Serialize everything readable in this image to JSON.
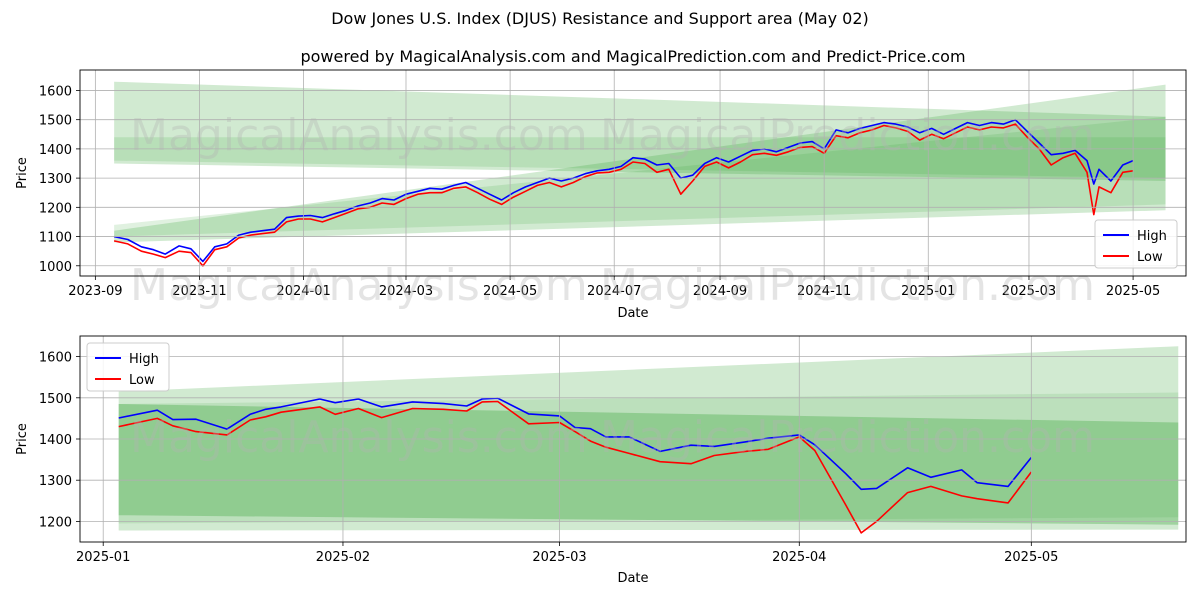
{
  "figure": {
    "title": "Dow Jones U.S. Index (DJUS) Resistance and Support area (May 02)",
    "watermarks": [
      "MagicalAnalysis.com",
      "MagicalPrediction.com"
    ]
  },
  "colors": {
    "high": "#0000ff",
    "low": "#ff0000",
    "band": "#2ca02c"
  },
  "chart_data": [
    {
      "type": "line",
      "subtitle": "powered by MagicalAnalysis.com and MagicalPrediction.com and Predict-Price.com",
      "xlabel": "Date",
      "ylabel": "Price",
      "xlim": [
        "2023-08-23",
        "2025-06-01"
      ],
      "ylim": [
        965,
        1670
      ],
      "grid": true,
      "legend": "lower-right",
      "xticks": [
        "2023-09",
        "2023-11",
        "2024-01",
        "2024-03",
        "2024-05",
        "2024-07",
        "2024-09",
        "2024-11",
        "2025-01",
        "2025-03",
        "2025-05"
      ],
      "yticks": [
        1000,
        1100,
        1200,
        1300,
        1400,
        1500,
        1600
      ],
      "bands": [
        {
          "x": [
            "2023-09-12",
            "2025-05-20"
          ],
          "upper": [
            1630,
            1510
          ],
          "lower": [
            1350,
            1290
          ],
          "alpha": 0.22
        },
        {
          "x": [
            "2023-09-12",
            "2025-05-20"
          ],
          "upper": [
            1440,
            1440
          ],
          "lower": [
            1360,
            1300
          ],
          "alpha": 0.15
        },
        {
          "x": [
            "2023-09-12",
            "2025-05-20"
          ],
          "upper": [
            1120,
            1620
          ],
          "lower": [
            1080,
            1190
          ],
          "alpha": 0.22
        },
        {
          "x": [
            "2023-09-12",
            "2025-05-20"
          ],
          "upper": [
            1140,
            1510
          ],
          "lower": [
            1100,
            1210
          ],
          "alpha": 0.15
        }
      ],
      "series": [
        {
          "name": "High",
          "x": [
            "2023-09-12",
            "2023-09-20",
            "2023-09-28",
            "2023-10-05",
            "2023-10-12",
            "2023-10-20",
            "2023-10-27",
            "2023-11-03",
            "2023-11-10",
            "2023-11-17",
            "2023-11-24",
            "2023-12-01",
            "2023-12-08",
            "2023-12-15",
            "2023-12-22",
            "2023-12-29",
            "2024-01-05",
            "2024-01-12",
            "2024-01-19",
            "2024-01-26",
            "2024-02-02",
            "2024-02-09",
            "2024-02-16",
            "2024-02-23",
            "2024-03-01",
            "2024-03-08",
            "2024-03-15",
            "2024-03-22",
            "2024-03-29",
            "2024-04-05",
            "2024-04-12",
            "2024-04-19",
            "2024-04-26",
            "2024-05-03",
            "2024-05-10",
            "2024-05-17",
            "2024-05-24",
            "2024-05-31",
            "2024-06-07",
            "2024-06-14",
            "2024-06-21",
            "2024-06-28",
            "2024-07-05",
            "2024-07-12",
            "2024-07-19",
            "2024-07-26",
            "2024-08-02",
            "2024-08-09",
            "2024-08-16",
            "2024-08-23",
            "2024-08-30",
            "2024-09-06",
            "2024-09-13",
            "2024-09-20",
            "2024-09-27",
            "2024-10-04",
            "2024-10-11",
            "2024-10-18",
            "2024-10-25",
            "2024-11-01",
            "2024-11-08",
            "2024-11-15",
            "2024-11-22",
            "2024-11-29",
            "2024-12-06",
            "2024-12-13",
            "2024-12-20",
            "2024-12-27",
            "2025-01-03",
            "2025-01-10",
            "2025-01-17",
            "2025-01-24",
            "2025-01-31",
            "2025-02-07",
            "2025-02-14",
            "2025-02-21",
            "2025-02-28",
            "2025-03-07",
            "2025-03-14",
            "2025-03-21",
            "2025-03-28",
            "2025-04-04",
            "2025-04-08",
            "2025-04-11",
            "2025-04-18",
            "2025-04-25",
            "2025-05-01"
          ],
          "values": [
            1100,
            1090,
            1065,
            1055,
            1040,
            1068,
            1058,
            1015,
            1065,
            1075,
            1105,
            1115,
            1120,
            1125,
            1165,
            1170,
            1172,
            1165,
            1178,
            1190,
            1205,
            1215,
            1230,
            1225,
            1245,
            1255,
            1265,
            1262,
            1275,
            1285,
            1265,
            1245,
            1225,
            1250,
            1270,
            1285,
            1300,
            1290,
            1300,
            1315,
            1325,
            1330,
            1340,
            1370,
            1365,
            1345,
            1350,
            1300,
            1310,
            1350,
            1370,
            1355,
            1375,
            1395,
            1400,
            1390,
            1405,
            1420,
            1425,
            1400,
            1465,
            1455,
            1470,
            1480,
            1490,
            1485,
            1475,
            1455,
            1470,
            1450,
            1470,
            1490,
            1480,
            1490,
            1485,
            1500,
            1460,
            1420,
            1380,
            1385,
            1395,
            1360,
            1280,
            1330,
            1290,
            1345,
            1360
          ]
        },
        {
          "name": "Low",
          "x": [
            "2023-09-12",
            "2023-09-20",
            "2023-09-28",
            "2023-10-05",
            "2023-10-12",
            "2023-10-20",
            "2023-10-27",
            "2023-11-03",
            "2023-11-10",
            "2023-11-17",
            "2023-11-24",
            "2023-12-01",
            "2023-12-08",
            "2023-12-15",
            "2023-12-22",
            "2023-12-29",
            "2024-01-05",
            "2024-01-12",
            "2024-01-19",
            "2024-01-26",
            "2024-02-02",
            "2024-02-09",
            "2024-02-16",
            "2024-02-23",
            "2024-03-01",
            "2024-03-08",
            "2024-03-15",
            "2024-03-22",
            "2024-03-29",
            "2024-04-05",
            "2024-04-12",
            "2024-04-19",
            "2024-04-26",
            "2024-05-03",
            "2024-05-10",
            "2024-05-17",
            "2024-05-24",
            "2024-05-31",
            "2024-06-07",
            "2024-06-14",
            "2024-06-21",
            "2024-06-28",
            "2024-07-05",
            "2024-07-12",
            "2024-07-19",
            "2024-07-26",
            "2024-08-02",
            "2024-08-09",
            "2024-08-16",
            "2024-08-23",
            "2024-08-30",
            "2024-09-06",
            "2024-09-13",
            "2024-09-20",
            "2024-09-27",
            "2024-10-04",
            "2024-10-11",
            "2024-10-18",
            "2024-10-25",
            "2024-11-01",
            "2024-11-08",
            "2024-11-15",
            "2024-11-22",
            "2024-11-29",
            "2024-12-06",
            "2024-12-13",
            "2024-12-20",
            "2024-12-27",
            "2025-01-03",
            "2025-01-10",
            "2025-01-17",
            "2025-01-24",
            "2025-01-31",
            "2025-02-07",
            "2025-02-14",
            "2025-02-21",
            "2025-02-28",
            "2025-03-07",
            "2025-03-14",
            "2025-03-21",
            "2025-03-28",
            "2025-04-04",
            "2025-04-08",
            "2025-04-11",
            "2025-04-18",
            "2025-04-25",
            "2025-05-01"
          ],
          "values": [
            1085,
            1075,
            1050,
            1040,
            1028,
            1050,
            1045,
            1000,
            1055,
            1065,
            1095,
            1105,
            1110,
            1115,
            1150,
            1160,
            1160,
            1150,
            1165,
            1180,
            1195,
            1200,
            1215,
            1210,
            1230,
            1245,
            1250,
            1250,
            1265,
            1270,
            1250,
            1228,
            1210,
            1235,
            1255,
            1275,
            1285,
            1270,
            1285,
            1305,
            1318,
            1320,
            1330,
            1355,
            1350,
            1320,
            1330,
            1245,
            1290,
            1340,
            1355,
            1335,
            1355,
            1380,
            1385,
            1378,
            1390,
            1405,
            1408,
            1385,
            1445,
            1438,
            1455,
            1465,
            1480,
            1472,
            1460,
            1430,
            1450,
            1435,
            1455,
            1475,
            1465,
            1475,
            1472,
            1485,
            1440,
            1400,
            1345,
            1370,
            1385,
            1320,
            1175,
            1270,
            1250,
            1320,
            1325
          ]
        }
      ]
    },
    {
      "type": "line",
      "xlabel": "Date",
      "ylabel": "Price",
      "xlim": [
        "2024-12-29",
        "2025-05-21"
      ],
      "ylim": [
        1150,
        1650
      ],
      "grid": true,
      "legend": "upper-left",
      "xticks": [
        "2025-01",
        "2025-02",
        "2025-03",
        "2025-04",
        "2025-05"
      ],
      "yticks": [
        1200,
        1300,
        1400,
        1500,
        1600
      ],
      "bands": [
        {
          "x": [
            "2025-01-03",
            "2025-05-20"
          ],
          "upper": [
            1515,
            1625
          ],
          "lower": [
            1178,
            1180
          ],
          "alpha": 0.22
        },
        {
          "x": [
            "2025-01-03",
            "2025-05-20"
          ],
          "upper": [
            1485,
            1440
          ],
          "lower": [
            1215,
            1192
          ],
          "alpha": 0.3
        },
        {
          "x": [
            "2025-01-03",
            "2025-05-20"
          ],
          "upper": [
            1485,
            1513
          ],
          "lower": [
            1195,
            1210
          ],
          "alpha": 0.12
        }
      ],
      "series": [
        {
          "name": "High",
          "x": [
            "2025-01-03",
            "2025-01-08",
            "2025-01-10",
            "2025-01-13",
            "2025-01-17",
            "2025-01-20",
            "2025-01-22",
            "2025-01-24",
            "2025-01-29",
            "2025-01-31",
            "2025-02-03",
            "2025-02-06",
            "2025-02-10",
            "2025-02-14",
            "2025-02-17",
            "2025-02-19",
            "2025-02-21",
            "2025-02-25",
            "2025-03-01",
            "2025-03-03",
            "2025-03-05",
            "2025-03-07",
            "2025-03-10",
            "2025-03-14",
            "2025-03-18",
            "2025-03-21",
            "2025-03-25",
            "2025-03-28",
            "2025-04-01",
            "2025-04-03",
            "2025-04-07",
            "2025-04-09",
            "2025-04-11",
            "2025-04-15",
            "2025-04-18",
            "2025-04-22",
            "2025-04-24",
            "2025-04-28",
            "2025-05-01"
          ],
          "values": [
            1451,
            1470,
            1447,
            1448,
            1424,
            1460,
            1472,
            1478,
            1497,
            1488,
            1497,
            1478,
            1490,
            1486,
            1480,
            1497,
            1499,
            1461,
            1456,
            1428,
            1425,
            1405,
            1405,
            1370,
            1385,
            1382,
            1393,
            1402,
            1410,
            1386,
            1316,
            1278,
            1280,
            1330,
            1307,
            1325,
            1294,
            1285,
            1355
          ]
        },
        {
          "name": "Low",
          "x": [
            "2025-01-03",
            "2025-01-08",
            "2025-01-10",
            "2025-01-13",
            "2025-01-17",
            "2025-01-20",
            "2025-01-22",
            "2025-01-24",
            "2025-01-29",
            "2025-01-31",
            "2025-02-03",
            "2025-02-06",
            "2025-02-10",
            "2025-02-14",
            "2025-02-17",
            "2025-02-19",
            "2025-02-21",
            "2025-02-25",
            "2025-03-01",
            "2025-03-03",
            "2025-03-05",
            "2025-03-07",
            "2025-03-10",
            "2025-03-14",
            "2025-03-18",
            "2025-03-21",
            "2025-03-25",
            "2025-03-28",
            "2025-04-01",
            "2025-04-03",
            "2025-04-07",
            "2025-04-09",
            "2025-04-11",
            "2025-04-15",
            "2025-04-18",
            "2025-04-22",
            "2025-04-24",
            "2025-04-28",
            "2025-05-01"
          ],
          "values": [
            1430,
            1450,
            1432,
            1418,
            1410,
            1446,
            1454,
            1465,
            1478,
            1460,
            1474,
            1452,
            1474,
            1472,
            1468,
            1490,
            1491,
            1437,
            1440,
            1418,
            1395,
            1380,
            1365,
            1345,
            1340,
            1360,
            1370,
            1375,
            1405,
            1372,
            1240,
            1172,
            1200,
            1270,
            1285,
            1262,
            1255,
            1245,
            1320
          ]
        }
      ]
    }
  ]
}
